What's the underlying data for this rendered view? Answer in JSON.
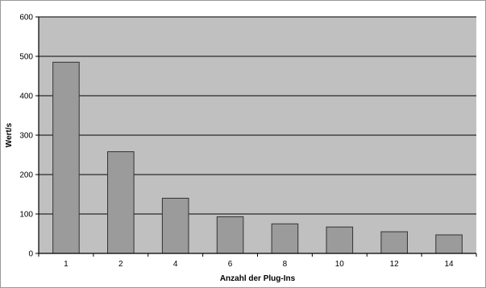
{
  "chart_data": {
    "type": "bar",
    "title": "",
    "xlabel": "Anzahl der Plug-Ins",
    "ylabel": "Wert/s",
    "categories": [
      "1",
      "2",
      "4",
      "6",
      "8",
      "10",
      "12",
      "14"
    ],
    "values": [
      485,
      258,
      140,
      93,
      75,
      67,
      55,
      47
    ],
    "ylim": [
      0,
      600
    ],
    "yticks": [
      "0",
      "100",
      "200",
      "300",
      "400",
      "500",
      "600"
    ],
    "grid": true,
    "legend": "none",
    "colors": {
      "plot_background": "#c0c0c0",
      "bar_fill": "#9b9b9b",
      "bar_stroke": "#333333",
      "gridline": "#2a2a2a"
    }
  }
}
